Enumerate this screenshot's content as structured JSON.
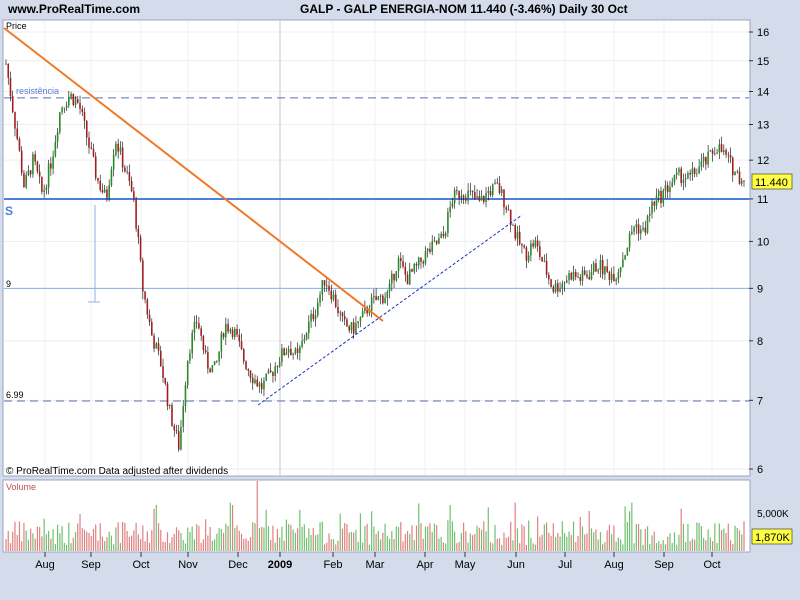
{
  "header": {
    "site": "www.ProRealTime.com",
    "quote": "GALP - GALP ENERGIA-NOM    11.440 (-3.46%)    Daily  30 Oct"
  },
  "panel": {
    "price_label": "Price",
    "resistance_label": "resistência",
    "support_marker": "S",
    "level_9_label": "9",
    "level_699_label": "6.99",
    "copyright": "© ProRealTime.com  Data adjusted after dividends",
    "last_price_tag": "11.440",
    "volume_label": "Volume",
    "volume_tick": "5,000K",
    "volume_last_tag": "1,870K",
    "year_label": "2009"
  },
  "colors": {
    "background": "#d4dcec",
    "panel": "#ffffff",
    "support_line": "#4a7fe0",
    "dashed_level": "#5a6fb0",
    "trendline": "#f07828",
    "uptrend": "#2030c0",
    "candle_up": "#2a8a2a",
    "candle_down": "#a02020",
    "volume_up": "#70c070",
    "volume_down": "#e08080"
  },
  "chart_data": {
    "type": "candlestick",
    "title": "GALP - GALP ENERGIA-NOM",
    "scale": "log",
    "y_ticks": [
      6,
      7,
      8,
      9,
      10,
      11,
      12,
      13,
      14,
      15,
      16
    ],
    "x_ticks": [
      "Aug",
      "Sep",
      "Oct",
      "Nov",
      "Dec",
      "2009",
      "Feb",
      "Mar",
      "Apr",
      "May",
      "Jun",
      "Jul",
      "Aug",
      "Sep",
      "Oct"
    ],
    "last_close": 11.44,
    "change_pct": -3.46,
    "horizontal_levels": {
      "resistance": 13.8,
      "support": 11.0,
      "level_9": 9.0,
      "level_699": 6.99
    },
    "close_path": [
      [
        "Jul 20",
        14.9
      ],
      [
        "Jul 25",
        13.0
      ],
      [
        "Aug 1",
        11.3
      ],
      [
        "Aug 6",
        12.0
      ],
      [
        "Aug 10",
        11.1
      ],
      [
        "Aug 15",
        12.0
      ],
      [
        "Aug 22",
        13.5
      ],
      [
        "Aug 28",
        13.9
      ],
      [
        "Sep 1",
        13.6
      ],
      [
        "Sep 8",
        12.5
      ],
      [
        "Sep 13",
        11.5
      ],
      [
        "Sep 20",
        11.0
      ],
      [
        "Sep 27",
        12.6
      ],
      [
        "Oct 2",
        11.8
      ],
      [
        "Oct 6",
        11.0
      ],
      [
        "Oct 12",
        9.0
      ],
      [
        "Oct 16",
        8.1
      ],
      [
        "Oct 21",
        7.6
      ],
      [
        "Oct 27",
        6.8
      ],
      [
        "Oct 31",
        6.3
      ],
      [
        "Nov 5",
        7.8
      ],
      [
        "Nov 10",
        8.4
      ],
      [
        "Nov 15",
        7.6
      ],
      [
        "Nov 20",
        7.5
      ],
      [
        "Nov 26",
        8.3
      ],
      [
        "Dec 1",
        8.2
      ],
      [
        "Dec 8",
        7.7
      ],
      [
        "Dec 14",
        7.4
      ],
      [
        "Dec 20",
        7.2
      ],
      [
        "Jan 1",
        7.4
      ],
      [
        "Jan 8",
        7.7
      ],
      [
        "Jan 14",
        7.9
      ],
      [
        "Jan 21",
        7.7
      ],
      [
        "Jan 28",
        8.2
      ],
      [
        "Feb 5",
        8.6
      ],
      [
        "Feb 10",
        9.2
      ],
      [
        "Feb 14",
        8.8
      ],
      [
        "Feb 20",
        8.3
      ],
      [
        "Feb 26",
        8.2
      ],
      [
        "Mar 5",
        8.4
      ],
      [
        "Mar 11",
        8.7
      ],
      [
        "Mar 17",
        8.8
      ],
      [
        "Mar 23",
        8.9
      ],
      [
        "Mar 30",
        9.6
      ],
      [
        "Apr 5",
        9.2
      ],
      [
        "Apr 10",
        9.4
      ],
      [
        "Apr 16",
        9.7
      ],
      [
        "Apr 22",
        9.9
      ],
      [
        "Apr 29",
        10.1
      ],
      [
        "May 2",
        11.0
      ],
      [
        "May 7",
        11.2
      ],
      [
        "May 12",
        11.1
      ],
      [
        "May 18",
        10.9
      ],
      [
        "May 24",
        11.2
      ],
      [
        "May 28",
        11.3
      ],
      [
        "Jun 3",
        10.8
      ],
      [
        "Jun 10",
        10.1
      ],
      [
        "Jun 16",
        9.7
      ],
      [
        "Jun 21",
        10.0
      ],
      [
        "Jun 28",
        9.5
      ],
      [
        "Jul 3",
        9.0
      ],
      [
        "Jul 8",
        9.1
      ],
      [
        "Jul 14",
        9.3
      ],
      [
        "Jul 21",
        9.2
      ],
      [
        "Jul 28",
        9.3
      ],
      [
        "Aug 3",
        9.5
      ],
      [
        "Aug 10",
        9.3
      ],
      [
        "Aug 17",
        9.3
      ],
      [
        "Aug 24",
        9.8
      ],
      [
        "Aug 31",
        10.4
      ],
      [
        "Sep 5",
        10.2
      ],
      [
        "Sep 10",
        10.9
      ],
      [
        "Sep 15",
        11.1
      ],
      [
        "Sep 21",
        11.4
      ],
      [
        "Sep 27",
        11.6
      ],
      [
        "Oct 2",
        11.5
      ],
      [
        "Oct 7",
        11.8
      ],
      [
        "Oct 13",
        12.0
      ],
      [
        "Oct 19",
        12.4
      ],
      [
        "Oct 23",
        12.1
      ],
      [
        "Oct 27",
        11.7
      ],
      [
        "Oct 30",
        11.44
      ]
    ],
    "volume_scale_k": [
      0,
      5000
    ],
    "last_volume_k": 1870
  }
}
